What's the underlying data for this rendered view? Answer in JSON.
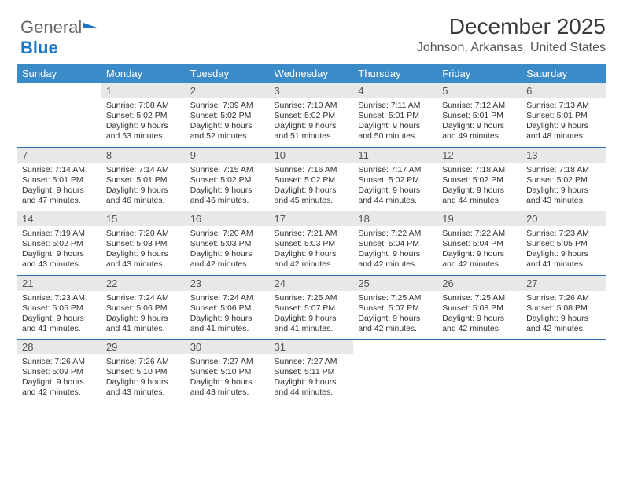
{
  "logo": {
    "part1": "General",
    "part2": "Blue"
  },
  "title": "December 2025",
  "location": "Johnson, Arkansas, United States",
  "header_bg": "#3b8bc9",
  "daynum_bg": "#e8e8e8",
  "rule_color": "#2d6fa8",
  "weekdays": [
    "Sunday",
    "Monday",
    "Tuesday",
    "Wednesday",
    "Thursday",
    "Friday",
    "Saturday"
  ],
  "weeks": [
    [
      null,
      {
        "n": "1",
        "sr": "Sunrise: 7:08 AM",
        "ss": "Sunset: 5:02 PM",
        "d1": "Daylight: 9 hours",
        "d2": "and 53 minutes."
      },
      {
        "n": "2",
        "sr": "Sunrise: 7:09 AM",
        "ss": "Sunset: 5:02 PM",
        "d1": "Daylight: 9 hours",
        "d2": "and 52 minutes."
      },
      {
        "n": "3",
        "sr": "Sunrise: 7:10 AM",
        "ss": "Sunset: 5:02 PM",
        "d1": "Daylight: 9 hours",
        "d2": "and 51 minutes."
      },
      {
        "n": "4",
        "sr": "Sunrise: 7:11 AM",
        "ss": "Sunset: 5:01 PM",
        "d1": "Daylight: 9 hours",
        "d2": "and 50 minutes."
      },
      {
        "n": "5",
        "sr": "Sunrise: 7:12 AM",
        "ss": "Sunset: 5:01 PM",
        "d1": "Daylight: 9 hours",
        "d2": "and 49 minutes."
      },
      {
        "n": "6",
        "sr": "Sunrise: 7:13 AM",
        "ss": "Sunset: 5:01 PM",
        "d1": "Daylight: 9 hours",
        "d2": "and 48 minutes."
      }
    ],
    [
      {
        "n": "7",
        "sr": "Sunrise: 7:14 AM",
        "ss": "Sunset: 5:01 PM",
        "d1": "Daylight: 9 hours",
        "d2": "and 47 minutes."
      },
      {
        "n": "8",
        "sr": "Sunrise: 7:14 AM",
        "ss": "Sunset: 5:01 PM",
        "d1": "Daylight: 9 hours",
        "d2": "and 46 minutes."
      },
      {
        "n": "9",
        "sr": "Sunrise: 7:15 AM",
        "ss": "Sunset: 5:02 PM",
        "d1": "Daylight: 9 hours",
        "d2": "and 46 minutes."
      },
      {
        "n": "10",
        "sr": "Sunrise: 7:16 AM",
        "ss": "Sunset: 5:02 PM",
        "d1": "Daylight: 9 hours",
        "d2": "and 45 minutes."
      },
      {
        "n": "11",
        "sr": "Sunrise: 7:17 AM",
        "ss": "Sunset: 5:02 PM",
        "d1": "Daylight: 9 hours",
        "d2": "and 44 minutes."
      },
      {
        "n": "12",
        "sr": "Sunrise: 7:18 AM",
        "ss": "Sunset: 5:02 PM",
        "d1": "Daylight: 9 hours",
        "d2": "and 44 minutes."
      },
      {
        "n": "13",
        "sr": "Sunrise: 7:18 AM",
        "ss": "Sunset: 5:02 PM",
        "d1": "Daylight: 9 hours",
        "d2": "and 43 minutes."
      }
    ],
    [
      {
        "n": "14",
        "sr": "Sunrise: 7:19 AM",
        "ss": "Sunset: 5:02 PM",
        "d1": "Daylight: 9 hours",
        "d2": "and 43 minutes."
      },
      {
        "n": "15",
        "sr": "Sunrise: 7:20 AM",
        "ss": "Sunset: 5:03 PM",
        "d1": "Daylight: 9 hours",
        "d2": "and 43 minutes."
      },
      {
        "n": "16",
        "sr": "Sunrise: 7:20 AM",
        "ss": "Sunset: 5:03 PM",
        "d1": "Daylight: 9 hours",
        "d2": "and 42 minutes."
      },
      {
        "n": "17",
        "sr": "Sunrise: 7:21 AM",
        "ss": "Sunset: 5:03 PM",
        "d1": "Daylight: 9 hours",
        "d2": "and 42 minutes."
      },
      {
        "n": "18",
        "sr": "Sunrise: 7:22 AM",
        "ss": "Sunset: 5:04 PM",
        "d1": "Daylight: 9 hours",
        "d2": "and 42 minutes."
      },
      {
        "n": "19",
        "sr": "Sunrise: 7:22 AM",
        "ss": "Sunset: 5:04 PM",
        "d1": "Daylight: 9 hours",
        "d2": "and 42 minutes."
      },
      {
        "n": "20",
        "sr": "Sunrise: 7:23 AM",
        "ss": "Sunset: 5:05 PM",
        "d1": "Daylight: 9 hours",
        "d2": "and 41 minutes."
      }
    ],
    [
      {
        "n": "21",
        "sr": "Sunrise: 7:23 AM",
        "ss": "Sunset: 5:05 PM",
        "d1": "Daylight: 9 hours",
        "d2": "and 41 minutes."
      },
      {
        "n": "22",
        "sr": "Sunrise: 7:24 AM",
        "ss": "Sunset: 5:06 PM",
        "d1": "Daylight: 9 hours",
        "d2": "and 41 minutes."
      },
      {
        "n": "23",
        "sr": "Sunrise: 7:24 AM",
        "ss": "Sunset: 5:06 PM",
        "d1": "Daylight: 9 hours",
        "d2": "and 41 minutes."
      },
      {
        "n": "24",
        "sr": "Sunrise: 7:25 AM",
        "ss": "Sunset: 5:07 PM",
        "d1": "Daylight: 9 hours",
        "d2": "and 41 minutes."
      },
      {
        "n": "25",
        "sr": "Sunrise: 7:25 AM",
        "ss": "Sunset: 5:07 PM",
        "d1": "Daylight: 9 hours",
        "d2": "and 42 minutes."
      },
      {
        "n": "26",
        "sr": "Sunrise: 7:25 AM",
        "ss": "Sunset: 5:08 PM",
        "d1": "Daylight: 9 hours",
        "d2": "and 42 minutes."
      },
      {
        "n": "27",
        "sr": "Sunrise: 7:26 AM",
        "ss": "Sunset: 5:08 PM",
        "d1": "Daylight: 9 hours",
        "d2": "and 42 minutes."
      }
    ],
    [
      {
        "n": "28",
        "sr": "Sunrise: 7:26 AM",
        "ss": "Sunset: 5:09 PM",
        "d1": "Daylight: 9 hours",
        "d2": "and 42 minutes."
      },
      {
        "n": "29",
        "sr": "Sunrise: 7:26 AM",
        "ss": "Sunset: 5:10 PM",
        "d1": "Daylight: 9 hours",
        "d2": "and 43 minutes."
      },
      {
        "n": "30",
        "sr": "Sunrise: 7:27 AM",
        "ss": "Sunset: 5:10 PM",
        "d1": "Daylight: 9 hours",
        "d2": "and 43 minutes."
      },
      {
        "n": "31",
        "sr": "Sunrise: 7:27 AM",
        "ss": "Sunset: 5:11 PM",
        "d1": "Daylight: 9 hours",
        "d2": "and 44 minutes."
      },
      null,
      null,
      null
    ]
  ]
}
